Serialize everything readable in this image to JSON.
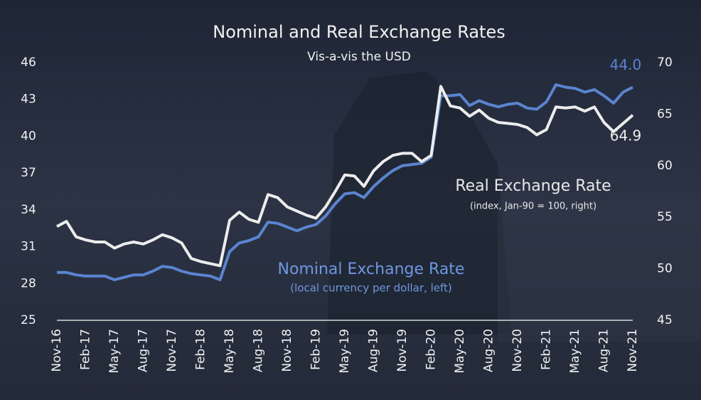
{
  "chart_data": {
    "type": "line",
    "title": "Nominal and Real Exchange Rates",
    "subtitle": "Vis-a-vis the USD",
    "categories": [
      "Nov-16",
      null,
      null,
      "Feb-17",
      null,
      null,
      "May-17",
      null,
      null,
      "Aug-17",
      null,
      null,
      "Nov-17",
      null,
      null,
      "Feb-18",
      null,
      null,
      "May-18",
      null,
      null,
      "Aug-18",
      null,
      null,
      "Nov-18",
      null,
      null,
      "Feb-19",
      null,
      null,
      "May-19",
      null,
      null,
      "Aug-19",
      null,
      null,
      "Nov-19",
      null,
      null,
      "Feb-20",
      null,
      null,
      "May-20",
      null,
      null,
      "Aug-20",
      null,
      null,
      "Nov-20",
      null,
      null,
      "Feb-21",
      null,
      null,
      "May-21",
      null,
      null,
      "Aug-21",
      null,
      null,
      "Nov-21"
    ],
    "series": [
      {
        "name": "Nominal Exchange Rate",
        "note": "(local currency per dollar, left)",
        "color": "#5b84d0",
        "axis": "y",
        "values": [
          28.9,
          28.9,
          28.7,
          28.6,
          28.6,
          28.6,
          28.3,
          28.5,
          28.7,
          28.7,
          29.0,
          29.4,
          29.3,
          29.0,
          28.8,
          28.7,
          28.6,
          28.3,
          30.6,
          31.3,
          31.5,
          31.8,
          33.0,
          32.9,
          32.6,
          32.3,
          32.6,
          32.8,
          33.5,
          34.5,
          35.3,
          35.4,
          35.0,
          35.9,
          36.6,
          37.2,
          37.6,
          37.7,
          37.8,
          38.3,
          43.3,
          43.3,
          43.4,
          42.5,
          42.9,
          42.6,
          42.4,
          42.6,
          42.7,
          42.3,
          42.2,
          42.8,
          44.2,
          44.0,
          43.9,
          43.6,
          43.8,
          43.3,
          42.7,
          43.6,
          44.0
        ],
        "value_labels": [
          null,
          null,
          null,
          null,
          null,
          null,
          null,
          null,
          null,
          null,
          null,
          null,
          null,
          null,
          null,
          null,
          null,
          null,
          null,
          null,
          null,
          null,
          null,
          null,
          null,
          null,
          null,
          null,
          null,
          null,
          null,
          null,
          null,
          null,
          null,
          null,
          null,
          null,
          null,
          null,
          null,
          null,
          null,
          null,
          null,
          null,
          null,
          null,
          null,
          null,
          null,
          null,
          null,
          null,
          null,
          null,
          null,
          null,
          null,
          null,
          "44.0"
        ]
      },
      {
        "name": "Real Exchange Rate",
        "note": "(index, Jan-90 = 100, right)",
        "color": "#ececec",
        "axis": "y2",
        "values": [
          54.1,
          54.6,
          53.1,
          52.8,
          52.6,
          52.6,
          52.0,
          52.4,
          52.6,
          52.4,
          52.8,
          53.3,
          53.0,
          52.5,
          51.0,
          50.7,
          50.5,
          50.3,
          54.7,
          55.5,
          54.8,
          54.5,
          57.2,
          56.9,
          56.0,
          55.6,
          55.2,
          54.9,
          56.0,
          57.5,
          59.1,
          59.0,
          58.0,
          59.5,
          60.4,
          61.0,
          61.2,
          61.2,
          60.4,
          61.0,
          67.7,
          65.8,
          65.6,
          64.8,
          65.4,
          64.6,
          64.2,
          64.1,
          64.0,
          63.7,
          63.0,
          63.5,
          65.7,
          65.6,
          65.7,
          65.3,
          65.7,
          64.2,
          63.3,
          64.1,
          64.9
        ],
        "value_labels": [
          null,
          null,
          null,
          null,
          null,
          null,
          null,
          null,
          null,
          null,
          null,
          null,
          null,
          null,
          null,
          null,
          null,
          null,
          null,
          null,
          null,
          null,
          null,
          null,
          null,
          null,
          null,
          null,
          null,
          null,
          null,
          null,
          null,
          null,
          null,
          null,
          null,
          null,
          null,
          null,
          null,
          null,
          null,
          null,
          null,
          null,
          null,
          null,
          null,
          null,
          null,
          null,
          null,
          null,
          null,
          null,
          null,
          null,
          null,
          null,
          "64.9"
        ]
      }
    ],
    "ylim": [
      25,
      46
    ],
    "yticks": [
      25,
      28,
      31,
      34,
      37,
      40,
      43,
      46
    ],
    "y2lim": [
      45,
      70
    ],
    "y2ticks": [
      45,
      50,
      55,
      60,
      65,
      70
    ]
  }
}
